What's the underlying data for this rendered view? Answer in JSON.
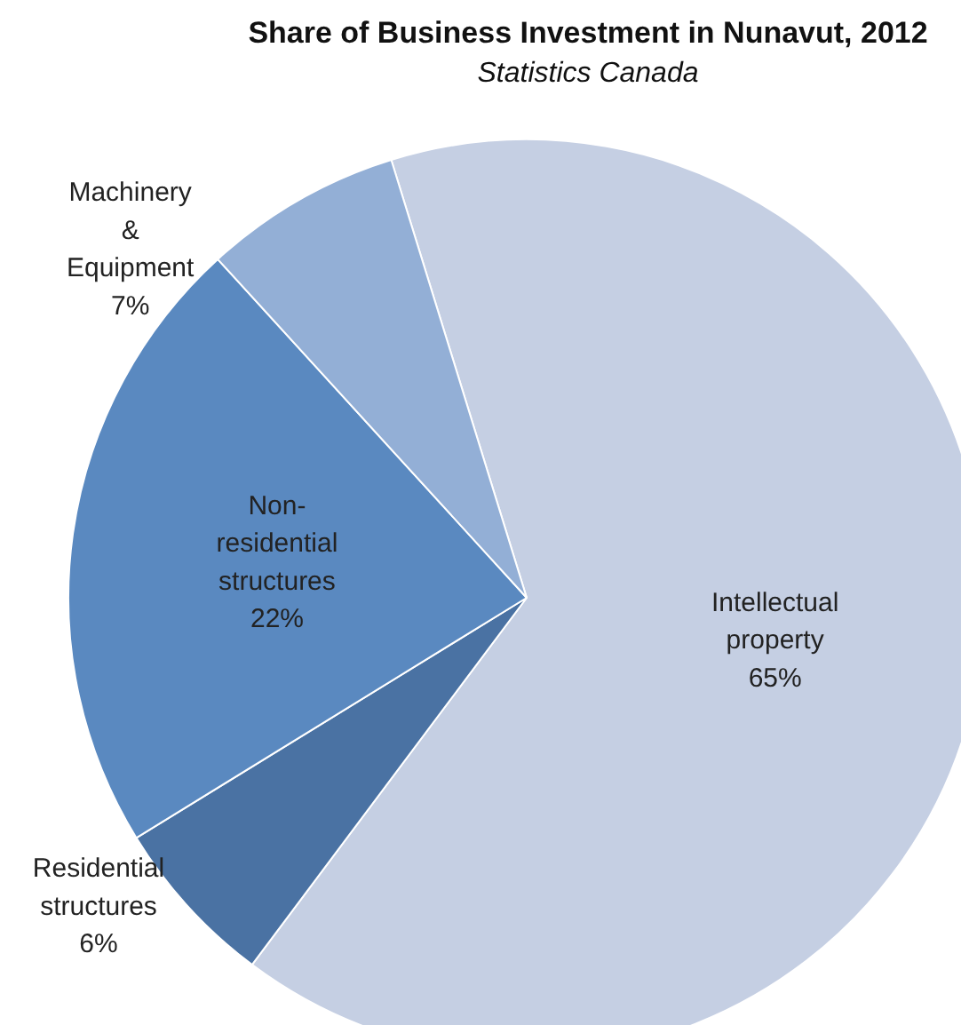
{
  "chart_data": {
    "type": "pie",
    "title": "Share of Business Investment in Nunavut, 2012",
    "subtitle": "Statistics Canada",
    "categories": [
      "Intellectual\nproperty",
      "Residential\nstructures",
      "Non-\nresidential\nstructures",
      "Machinery\n&\nEquipment"
    ],
    "values": [
      65,
      6,
      22,
      7
    ],
    "value_labels": [
      "65%",
      "6%",
      "22%",
      "7%"
    ],
    "colors": [
      "#c5cfe3",
      "#4a72a3",
      "#5a89c0",
      "#93afd6"
    ]
  }
}
